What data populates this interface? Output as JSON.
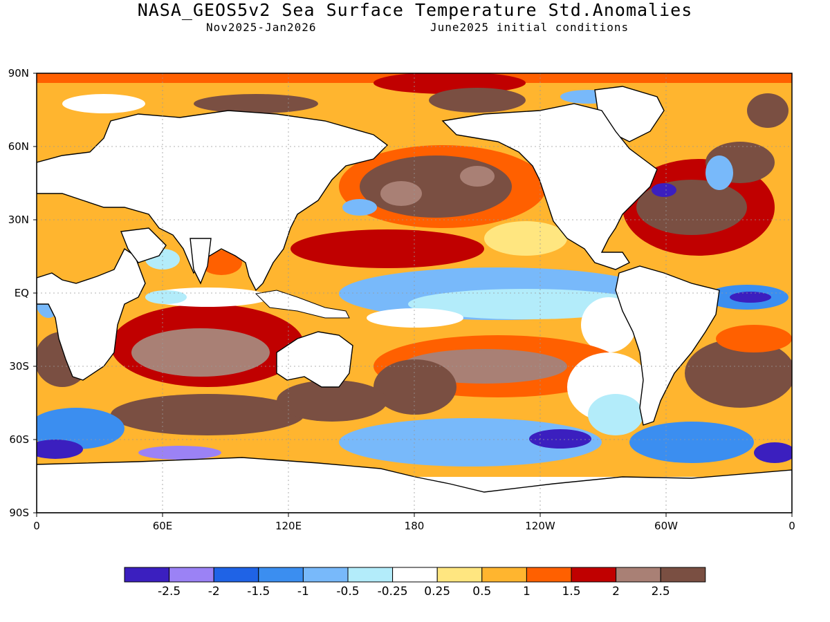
{
  "header": {
    "title": "NASA_GEOS5v2 Sea Surface Temperature Std.Anomalies",
    "period": "Nov2025-Jan2026",
    "init": "June2025 initial conditions"
  },
  "map": {
    "lat_labels": [
      "90N",
      "60N",
      "30N",
      "EQ",
      "30S",
      "60S",
      "90S"
    ],
    "lon_labels": [
      "0",
      "60E",
      "120E",
      "180",
      "120W",
      "60W",
      "0"
    ],
    "land_color": "#ffffff",
    "ocean_base_color": "#ffb52f"
  },
  "colorbar": {
    "colors": [
      "#3b1fbf",
      "#9b82f5",
      "#1f63e6",
      "#3b8ef0",
      "#78b9fa",
      "#b3ecfa",
      "#ffffff",
      "#ffe680",
      "#ffb52f",
      "#ff6000",
      "#c00000",
      "#a98075",
      "#7a4f42"
    ],
    "labels": [
      "-2.5",
      "-2",
      "-1.5",
      "-1",
      "-0.5",
      "-0.25",
      "0.25",
      "0.5",
      "1",
      "1.5",
      "2",
      "2.5"
    ]
  }
}
